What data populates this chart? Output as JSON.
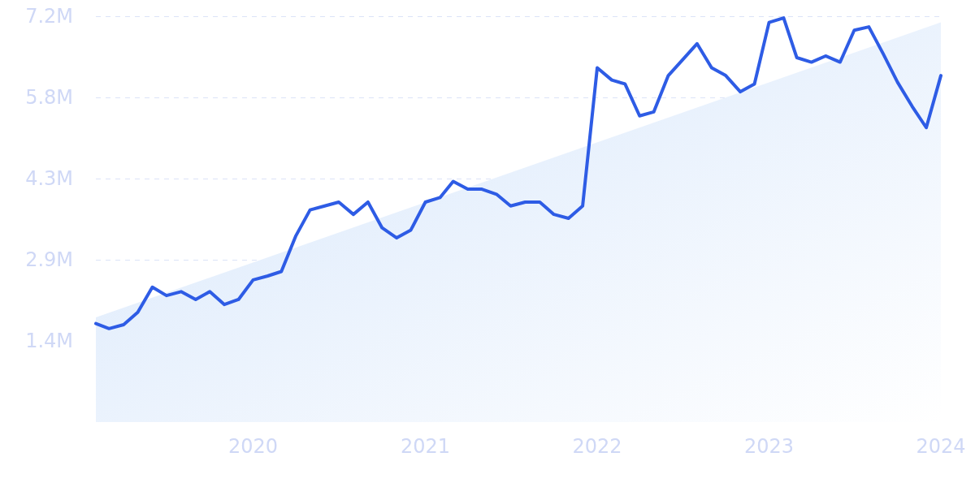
{
  "chart_data": {
    "type": "line",
    "xlim": [
      "2019-02",
      "2024-01"
    ],
    "xticks": [
      "2020",
      "2021",
      "2022",
      "2023",
      "2024"
    ],
    "ylim": [
      0,
      7.25
    ],
    "yticks": [
      {
        "value": 1.45,
        "label": "1.4M"
      },
      {
        "value": 2.9,
        "label": "2.9M"
      },
      {
        "value": 4.35,
        "label": "4.3M"
      },
      {
        "value": 5.8,
        "label": "5.8M"
      },
      {
        "value": 7.25,
        "label": "7.2M"
      }
    ],
    "grid": "y",
    "marker": "none",
    "line_style": "solid",
    "series": [
      {
        "type": "area",
        "color": "#d6e6fb",
        "x": [
          "2019-02",
          "2024-01"
        ],
        "values": [
          1.87,
          7.14
        ]
      },
      {
        "color": "#2e5ce5",
        "x": [
          "2019-02",
          "2019-03",
          "2019-04",
          "2019-05",
          "2019-06",
          "2019-07",
          "2019-08",
          "2019-09",
          "2019-10",
          "2019-11",
          "2019-12",
          "2020-01",
          "2020-02",
          "2020-03",
          "2020-04",
          "2020-05",
          "2020-06",
          "2020-07",
          "2020-08",
          "2020-09",
          "2020-10",
          "2020-11",
          "2020-12",
          "2021-01",
          "2021-02",
          "2021-03",
          "2021-04",
          "2021-05",
          "2021-06",
          "2021-07",
          "2021-08",
          "2021-09",
          "2021-10",
          "2021-11",
          "2021-12",
          "2022-01",
          "2022-02",
          "2022-03",
          "2022-04",
          "2022-05",
          "2022-06",
          "2022-07",
          "2022-08",
          "2022-09",
          "2022-10",
          "2022-11",
          "2022-12",
          "2023-01",
          "2023-02",
          "2023-03",
          "2023-04",
          "2023-05",
          "2023-06",
          "2023-07",
          "2023-08",
          "2023-09",
          "2023-10",
          "2023-11",
          "2023-12",
          "2024-01"
        ],
        "values": [
          1.76,
          1.67,
          1.74,
          1.96,
          2.41,
          2.26,
          2.33,
          2.19,
          2.33,
          2.1,
          2.19,
          2.54,
          2.61,
          2.69,
          3.33,
          3.79,
          3.86,
          3.93,
          3.71,
          3.93,
          3.47,
          3.29,
          3.43,
          3.93,
          4.01,
          4.3,
          4.16,
          4.16,
          4.07,
          3.86,
          3.93,
          3.93,
          3.71,
          3.64,
          3.86,
          6.33,
          6.11,
          6.04,
          5.47,
          5.54,
          6.19,
          6.47,
          6.76,
          6.33,
          6.19,
          5.9,
          6.04,
          7.14,
          7.22,
          6.51,
          6.43,
          6.54,
          6.43,
          7.0,
          7.06,
          6.57,
          6.07,
          5.64,
          5.26,
          6.19
        ]
      }
    ]
  }
}
